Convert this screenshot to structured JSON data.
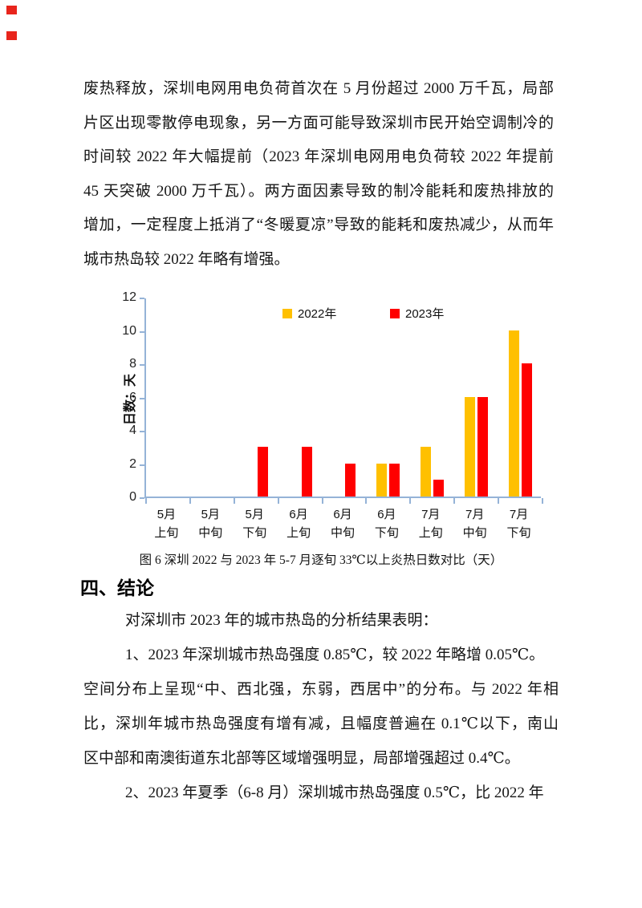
{
  "annotation": {
    "mark_color": "#e8251c"
  },
  "paragraph1": {
    "lines": [
      "废热释放，深圳电网用电负荷首次在 5 月份超过 2000 万千瓦，局部",
      "片区出现零散停电现象，另一方面可能导致深圳市民开始空调制冷的",
      "时间较 2022 年大幅提前（2023 年深圳电网用电负荷较 2022 年提前",
      "45 天突破 2000 万千瓦）。两方面因素导致的制冷能耗和废热排放的",
      "增加，一定程度上抵消了“冬暖夏凉”导致的能耗和废热减少，从而年",
      "城市热岛较 2022 年略有增强。"
    ]
  },
  "chart_data": {
    "type": "bar",
    "title": "",
    "categories": [
      [
        "5月",
        "上旬"
      ],
      [
        "5月",
        "中旬"
      ],
      [
        "5月",
        "下旬"
      ],
      [
        "6月",
        "上旬"
      ],
      [
        "6月",
        "中旬"
      ],
      [
        "6月",
        "下旬"
      ],
      [
        "7月",
        "上旬"
      ],
      [
        "7月",
        "中旬"
      ],
      [
        "7月",
        "下旬"
      ]
    ],
    "series": [
      {
        "name": "2022年",
        "color": "#FFC000",
        "values": [
          0,
          0,
          0,
          0,
          0,
          2,
          3,
          6,
          10
        ]
      },
      {
        "name": "2023年",
        "color": "#FF0000",
        "values": [
          0,
          0,
          3,
          3,
          2,
          2,
          1,
          6,
          8
        ]
      }
    ],
    "xlabel": "",
    "ylabel": "日数：天",
    "ylim": [
      0,
      12
    ],
    "yticks": [
      0,
      2,
      4,
      6,
      8,
      10,
      12
    ],
    "grid": false,
    "legend_position": "top-center",
    "axis_color": "#95B3D7"
  },
  "caption": "图 6  深圳 2022 与 2023 年 5-7 月逐旬 33℃以上炎热日数对比（天）",
  "section": {
    "heading": "四、结论"
  },
  "paragraph2": {
    "lines": [
      "对深圳市 2023 年的城市热岛的分析结果表明：",
      "1、2023 年深圳城市热岛强度 0.85℃，较 2022 年略增 0.05℃。",
      "空间分布上呈现“中、西北强，东弱，西居中”的分布。与 2022 年相",
      "比，深圳年城市热岛强度有增有减，且幅度普遍在 0.1℃以下，南山",
      "区中部和南澳街道东北部等区域增强明显，局部增强超过 0.4℃。",
      "2、2023 年夏季（6-8 月）深圳城市热岛强度 0.5℃，比 2022 年"
    ]
  }
}
